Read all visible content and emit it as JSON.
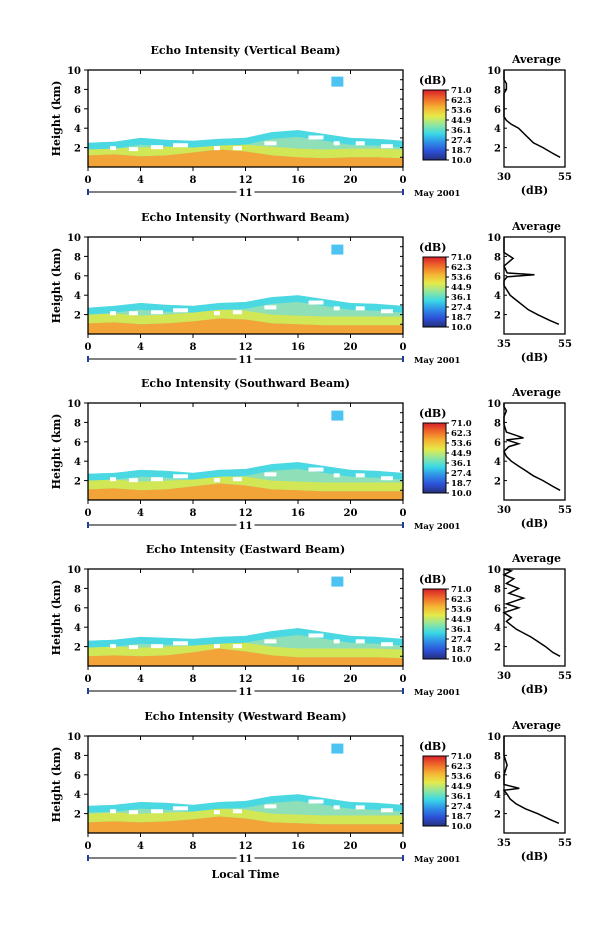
{
  "colorbar": {
    "unit": "(dB)",
    "labels": [
      "71.0",
      "62.3",
      "53.6",
      "44.9",
      "36.1",
      "27.4",
      "18.7",
      "10.0"
    ],
    "range": [
      10.0,
      71.0
    ],
    "colors": [
      "#25307a",
      "#2d50d8",
      "#2e8ee8",
      "#3ad8e6",
      "#8fe6a0",
      "#e5ea4a",
      "#f5b433",
      "#ef6a2a",
      "#d8202a"
    ]
  },
  "common": {
    "ylabel": "Height (km)",
    "xticks": [
      "0",
      "4",
      "8",
      "12",
      "16",
      "20",
      "0"
    ],
    "date_day": "11",
    "date_label": "May 2001",
    "xlabel": "Local Time",
    "avg_title": "Average",
    "avg_xlabel": "(dB)"
  },
  "panels": [
    {
      "title": "Echo Intensity (Vertical Beam)",
      "avg_xticks": [
        "30",
        "55"
      ]
    },
    {
      "title": "Echo Intensity (Northward Beam)",
      "avg_xticks": [
        "35",
        "55"
      ]
    },
    {
      "title": "Echo Intensity (Southward Beam)",
      "avg_xticks": [
        "30",
        "55"
      ]
    },
    {
      "title": "Echo Intensity (Eastward Beam)",
      "avg_xticks": [
        "30",
        "55"
      ]
    },
    {
      "title": "Echo Intensity (Westward Beam)",
      "avg_xticks": [
        "35",
        "55"
      ]
    }
  ],
  "chart_data": [
    {
      "type": "heatmap",
      "title": "Echo Intensity (Vertical Beam)",
      "xlabel": "",
      "ylabel": "Height (km)",
      "x_hours": [
        0,
        2,
        4,
        6,
        8,
        10,
        12,
        14,
        16,
        18,
        20,
        22,
        24
      ],
      "top_km": [
        2.5,
        2.6,
        3.0,
        2.8,
        2.7,
        2.9,
        3.0,
        3.6,
        3.8,
        3.4,
        3.0,
        2.9,
        2.7
      ],
      "hot_top_km": [
        1.2,
        1.3,
        1.1,
        1.2,
        1.5,
        1.8,
        1.6,
        1.2,
        1.0,
        0.9,
        1.0,
        1.0,
        0.9
      ],
      "isolated": [
        {
          "hour": 19.0,
          "km": 8.7
        }
      ],
      "colorbar": [
        10.0,
        71.0
      ],
      "ylim": [
        0,
        10
      ],
      "xlim": [
        0,
        24
      ]
    },
    {
      "type": "line",
      "title": "Average",
      "xlabel": "(dB)",
      "ylabel": "Height (km)",
      "x": [
        53,
        50,
        46,
        42,
        40,
        38,
        36,
        33,
        31,
        30,
        30,
        30,
        30,
        30,
        30,
        31,
        31,
        30,
        30,
        30,
        30
      ],
      "y": [
        1,
        1.4,
        2,
        2.5,
        3,
        3.5,
        4,
        4.4,
        4.8,
        5.2,
        5.6,
        6,
        6.6,
        7,
        7.6,
        8,
        8.6,
        9,
        9.4,
        9.8,
        10
      ],
      "xlim": [
        30,
        55
      ],
      "ylim": [
        0,
        10
      ]
    },
    {
      "type": "heatmap",
      "title": "Echo Intensity (Northward Beam)",
      "ylabel": "Height (km)",
      "x_hours": [
        0,
        2,
        4,
        6,
        8,
        10,
        12,
        14,
        16,
        18,
        20,
        22,
        24
      ],
      "top_km": [
        2.7,
        2.9,
        3.2,
        3.0,
        2.9,
        3.2,
        3.3,
        3.8,
        4.0,
        3.6,
        3.2,
        3.1,
        2.9
      ],
      "hot_top_km": [
        1.1,
        1.2,
        1.0,
        1.1,
        1.3,
        1.6,
        1.5,
        1.1,
        1.0,
        0.9,
        0.9,
        0.9,
        0.9
      ],
      "isolated": [
        {
          "hour": 19.0,
          "km": 8.6
        }
      ],
      "colorbar": [
        10.0,
        71.0
      ],
      "ylim": [
        0,
        10
      ],
      "xlim": [
        0,
        24
      ]
    },
    {
      "type": "line",
      "title": "Average",
      "xlabel": "(dB)",
      "ylabel": "Height (km)",
      "x": [
        53,
        50,
        46,
        43,
        41,
        39,
        37,
        36,
        35,
        35,
        36,
        45,
        36,
        35,
        38,
        35,
        35,
        35,
        35
      ],
      "y": [
        1,
        1.4,
        2,
        2.5,
        3,
        3.5,
        4,
        4.5,
        5,
        5.5,
        5.9,
        6.1,
        6.3,
        7,
        7.8,
        8.4,
        9,
        9.6,
        10
      ],
      "xlim": [
        35,
        55
      ],
      "ylim": [
        0,
        10
      ]
    },
    {
      "type": "heatmap",
      "title": "Echo Intensity (Southward Beam)",
      "ylabel": "Height (km)",
      "x_hours": [
        0,
        2,
        4,
        6,
        8,
        10,
        12,
        14,
        16,
        18,
        20,
        22,
        24
      ],
      "top_km": [
        2.7,
        2.8,
        3.1,
        3.0,
        2.8,
        3.1,
        3.2,
        3.7,
        3.9,
        3.5,
        3.1,
        3.0,
        2.8
      ],
      "hot_top_km": [
        1.1,
        1.2,
        1.0,
        1.1,
        1.4,
        1.7,
        1.5,
        1.1,
        1.0,
        0.9,
        0.9,
        0.9,
        0.9
      ],
      "isolated": [
        {
          "hour": 19.0,
          "km": 8.6
        }
      ],
      "colorbar": [
        10.0,
        71.0
      ],
      "ylim": [
        0,
        10
      ],
      "xlim": [
        0,
        24
      ]
    },
    {
      "type": "line",
      "title": "Average",
      "xlabel": "(dB)",
      "ylabel": "Height (km)",
      "x": [
        53,
        50,
        46,
        42,
        39,
        36,
        33,
        31,
        30,
        32,
        36,
        31,
        38,
        31,
        30,
        30,
        31,
        30,
        30
      ],
      "y": [
        1,
        1.4,
        2,
        2.5,
        3,
        3.5,
        4,
        4.5,
        5,
        5.5,
        5.8,
        6.2,
        6.4,
        7,
        7.8,
        8.6,
        9.2,
        9.6,
        10
      ],
      "xlim": [
        30,
        55
      ],
      "ylim": [
        0,
        10
      ]
    },
    {
      "type": "heatmap",
      "title": "Echo Intensity (Eastward Beam)",
      "ylabel": "Height (km)",
      "x_hours": [
        0,
        2,
        4,
        6,
        8,
        10,
        12,
        14,
        16,
        18,
        20,
        22,
        24
      ],
      "top_km": [
        2.6,
        2.7,
        3.0,
        2.9,
        2.8,
        3.0,
        3.1,
        3.6,
        3.9,
        3.5,
        3.1,
        3.0,
        2.8
      ],
      "hot_top_km": [
        1.0,
        1.1,
        1.0,
        1.1,
        1.4,
        1.8,
        1.5,
        1.1,
        0.9,
        0.9,
        0.9,
        0.9,
        0.8
      ],
      "isolated": [
        {
          "hour": 19.0,
          "km": 8.6
        }
      ],
      "colorbar": [
        10.0,
        71.0
      ],
      "ylim": [
        0,
        10
      ],
      "xlim": [
        0,
        24
      ]
    },
    {
      "type": "line",
      "title": "Average",
      "xlabel": "(dB)",
      "ylabel": "Height (km)",
      "x": [
        53,
        50,
        47,
        44,
        41,
        38,
        35,
        33,
        31,
        33,
        30,
        36,
        31,
        38,
        32,
        36,
        31,
        34,
        30,
        33,
        30
      ],
      "y": [
        1,
        1.4,
        2,
        2.5,
        3,
        3.4,
        3.8,
        4.2,
        4.6,
        5,
        5.5,
        6,
        6.4,
        7,
        7.5,
        8,
        8.5,
        9,
        9.4,
        9.8,
        10
      ],
      "xlim": [
        30,
        55
      ],
      "ylim": [
        0,
        10
      ]
    },
    {
      "type": "heatmap",
      "title": "Echo Intensity (Westward Beam)",
      "ylabel": "Height (km)",
      "x_hours": [
        0,
        2,
        4,
        6,
        8,
        10,
        12,
        14,
        16,
        18,
        20,
        22,
        24
      ],
      "top_km": [
        2.8,
        2.9,
        3.2,
        3.1,
        2.9,
        3.2,
        3.3,
        3.8,
        4.0,
        3.6,
        3.2,
        3.1,
        2.9
      ],
      "hot_top_km": [
        1.1,
        1.2,
        1.1,
        1.2,
        1.4,
        1.7,
        1.5,
        1.1,
        1.0,
        0.9,
        0.9,
        0.9,
        0.9
      ],
      "isolated": [
        {
          "hour": 19.0,
          "km": 8.6
        }
      ],
      "colorbar": [
        10.0,
        71.0
      ],
      "ylim": [
        0,
        10
      ],
      "xlim": [
        0,
        24
      ]
    },
    {
      "type": "line",
      "title": "Average",
      "xlabel": "(dB)",
      "ylabel": "Height (km)",
      "x": [
        53,
        50,
        46,
        42,
        39,
        37,
        36,
        35,
        40,
        35,
        35,
        36,
        35,
        35,
        35,
        35
      ],
      "y": [
        1,
        1.4,
        2,
        2.5,
        3,
        3.5,
        4,
        4.4,
        4.6,
        5,
        6,
        7,
        8,
        8.8,
        9.6,
        10
      ],
      "xlim": [
        35,
        55
      ],
      "ylim": [
        0,
        10
      ]
    }
  ]
}
